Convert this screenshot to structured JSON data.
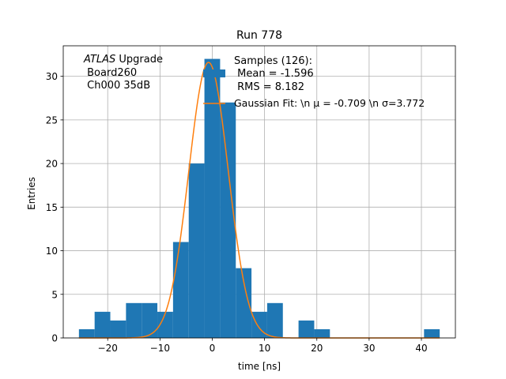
{
  "chart_data": {
    "type": "bar",
    "title": "Run 778",
    "xlabel": "time [ns]",
    "ylabel": "Entries",
    "xlim": [
      -28.5,
      46.5
    ],
    "ylim": [
      0,
      33.5
    ],
    "xticks": [
      -20,
      -10,
      0,
      10,
      20,
      30,
      40
    ],
    "yticks": [
      0,
      5,
      10,
      15,
      20,
      25,
      30
    ],
    "grid": true,
    "bar_color": "#1f77b4",
    "fit_color": "#ff7f0e",
    "bins": [
      {
        "x0": -25.5,
        "x1": -22.5,
        "count": 1
      },
      {
        "x0": -22.5,
        "x1": -19.5,
        "count": 3
      },
      {
        "x0": -19.5,
        "x1": -16.5,
        "count": 2
      },
      {
        "x0": -16.5,
        "x1": -13.5,
        "count": 4
      },
      {
        "x0": -13.5,
        "x1": -10.5,
        "count": 4
      },
      {
        "x0": -10.5,
        "x1": -7.5,
        "count": 3
      },
      {
        "x0": -7.5,
        "x1": -4.5,
        "count": 11
      },
      {
        "x0": -4.5,
        "x1": -1.5,
        "count": 20
      },
      {
        "x0": -1.5,
        "x1": 1.5,
        "count": 32
      },
      {
        "x0": 1.5,
        "x1": 4.5,
        "count": 27
      },
      {
        "x0": 4.5,
        "x1": 7.5,
        "count": 8
      },
      {
        "x0": 7.5,
        "x1": 10.5,
        "count": 3
      },
      {
        "x0": 10.5,
        "x1": 13.5,
        "count": 4
      },
      {
        "x0": 13.5,
        "x1": 16.5,
        "count": 0
      },
      {
        "x0": 16.5,
        "x1": 19.5,
        "count": 2
      },
      {
        "x0": 19.5,
        "x1": 22.5,
        "count": 1
      },
      {
        "x0": 40.5,
        "x1": 43.5,
        "count": 1
      }
    ],
    "fit": {
      "mu": -0.709,
      "sigma": 3.772,
      "amplitude": 31.6,
      "x_range": [
        -25.5,
        43.5
      ]
    },
    "annotation": {
      "italic": "ATLAS",
      "line1_rest": " Upgrade",
      "line2": " Board260",
      "line3": " Ch000 35dB"
    },
    "legend": {
      "placement": "upper-right",
      "samples_line1": "Samples (126):",
      "samples_line2": " Mean = -1.596",
      "samples_line3": " RMS = 8.182",
      "fit_label": "Gaussian Fit: \\n μ = -0.709 \\n σ=3.772"
    }
  }
}
